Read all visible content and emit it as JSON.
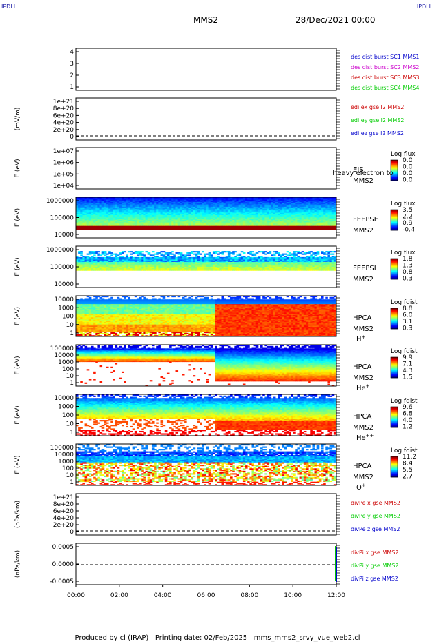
{
  "header": {
    "corner_left": "IPDLI",
    "corner_right": "IPDLI",
    "spacecraft": "MMS2",
    "date": "28/Dec/2021 00:00"
  },
  "footer": {
    "produced_by": "Produced by cl (IRAP)",
    "printing_date": "Printing date: 02/Feb/2025",
    "filename": "mms_mms2_srvy_vue_web2.cl"
  },
  "colors": {
    "blue": "#0000cc",
    "magenta": "#cc00cc",
    "red": "#cc0000",
    "green": "#00cc00"
  },
  "chart_data": [
    {
      "id": "p1",
      "type": "line",
      "xlabel": "",
      "ylabel": "",
      "ticks": [
        "4",
        "3",
        "2",
        "1"
      ],
      "ylim": [
        0.5,
        4.5
      ],
      "series": [
        {
          "name": "des dist burst SC1 MMS1",
          "color": "blue"
        },
        {
          "name": "des dist burst SC2 MMS2",
          "color": "magenta"
        },
        {
          "name": "des dist burst SC3 MMS3",
          "color": "red"
        },
        {
          "name": "des dist burst SC4 MMS4",
          "color": "green"
        }
      ]
    },
    {
      "id": "p2",
      "type": "line",
      "xlabel": "",
      "ylabel": "(mV/m)",
      "ticks": [
        "1e+21",
        "8e+20",
        "6e+20",
        "4e+20",
        "2e+20",
        "0"
      ],
      "ylim": [
        0,
        1.1e+21
      ],
      "series": [
        {
          "name": "edi ex gse l2 MMS2",
          "color": "red"
        },
        {
          "name": "edi ey gse l2 MMS2",
          "color": "green"
        },
        {
          "name": "edi ez gse l2 MMS2",
          "color": "blue"
        }
      ]
    },
    {
      "id": "p3",
      "type": "heatmap",
      "ylabel": "E (eV)",
      "ticks": [
        "1e+07",
        "1e+06",
        "1e+05",
        "1e+04"
      ],
      "yscale": "log",
      "instrument": "EIS",
      "spacecraft": "MMS2",
      "overlay": "heavy electron to",
      "colorbar": {
        "label": "Log flux",
        "ticks": [
          "0.0",
          "0.0",
          "0.0",
          "0.0"
        ]
      }
    },
    {
      "id": "p4",
      "type": "heatmap",
      "ylabel": "E (eV)",
      "ticks": [
        "1000000",
        "100000",
        "10000"
      ],
      "yscale": "log",
      "instrument": "FEEPSE",
      "spacecraft": "MMS2",
      "colorbar": {
        "label": "Log flux",
        "ticks": [
          "3.5",
          "2.2",
          "0.9",
          "-0.4"
        ]
      }
    },
    {
      "id": "p5",
      "type": "heatmap",
      "ylabel": "E (eV)",
      "ticks": [
        "1000000",
        "100000",
        "10000"
      ],
      "yscale": "log",
      "instrument": "FEEPSI",
      "spacecraft": "MMS2",
      "colorbar": {
        "label": "Log flux",
        "ticks": [
          "1.8",
          "1.3",
          "0.8",
          "0.3"
        ]
      }
    },
    {
      "id": "p6",
      "type": "heatmap",
      "ylabel": "E (eV)",
      "ticks": [
        "10000",
        "1000",
        "100",
        "10",
        "1"
      ],
      "yscale": "log",
      "instrument": "HPCA",
      "spacecraft": "MMS2",
      "species": "H",
      "charge": "+",
      "colorbar": {
        "label": "Log fdist",
        "ticks": [
          "8.8",
          "6.0",
          "3.1",
          "0.3"
        ]
      }
    },
    {
      "id": "p7",
      "type": "heatmap",
      "ylabel": "E (eV)",
      "ticks": [
        "100000",
        "10000",
        "1000",
        "100",
        "10",
        "1"
      ],
      "yscale": "log",
      "instrument": "HPCA",
      "spacecraft": "MMS2",
      "species": "He",
      "charge": "+",
      "colorbar": {
        "label": "Log fdist",
        "ticks": [
          "9.9",
          "7.1",
          "4.3",
          "1.5"
        ]
      }
    },
    {
      "id": "p8",
      "type": "heatmap",
      "ylabel": "E (eV)",
      "ticks": [
        "10000",
        "1000",
        "100",
        "10",
        "1"
      ],
      "yscale": "log",
      "instrument": "HPCA",
      "spacecraft": "MMS2",
      "species": "He",
      "charge": "++",
      "colorbar": {
        "label": "Log fdist",
        "ticks": [
          "9.6",
          "6.8",
          "4.0",
          "1.2"
        ]
      }
    },
    {
      "id": "p9",
      "type": "heatmap",
      "ylabel": "E (eV)",
      "ticks": [
        "100000",
        "10000",
        "1000",
        "100",
        "10",
        "1"
      ],
      "yscale": "log",
      "instrument": "HPCA",
      "spacecraft": "MMS2",
      "species": "O",
      "charge": "+",
      "colorbar": {
        "label": "Log fdist",
        "ticks": [
          "11.2",
          "8.4",
          "5.5",
          "2.7"
        ]
      }
    },
    {
      "id": "p10",
      "type": "line",
      "xlabel": "",
      "ylabel": "(nPa/km)",
      "ticks": [
        "1e+21",
        "8e+20",
        "6e+20",
        "4e+20",
        "2e+20",
        "0"
      ],
      "ylim": [
        0,
        1.1e+21
      ],
      "series": [
        {
          "name": "divPe x gse MMS2",
          "color": "red"
        },
        {
          "name": "divPe y gse MMS2",
          "color": "green"
        },
        {
          "name": "divPe z gse MMS2",
          "color": "blue"
        }
      ]
    },
    {
      "id": "p11",
      "type": "line",
      "xlabel": "",
      "ylabel": "(nPa/km)",
      "ticks": [
        "0.0005",
        "0.0000",
        "-0.0005"
      ],
      "ylim": [
        -0.0008,
        0.0008
      ],
      "xticks": [
        "00:00",
        "02:00",
        "04:00",
        "06:00",
        "08:00",
        "10:00",
        "12:00"
      ],
      "series": [
        {
          "name": "divPi x gse MMS2",
          "color": "red"
        },
        {
          "name": "divPi y gse MMS2",
          "color": "green"
        },
        {
          "name": "divPi z gse MMS2",
          "color": "blue"
        }
      ]
    }
  ]
}
